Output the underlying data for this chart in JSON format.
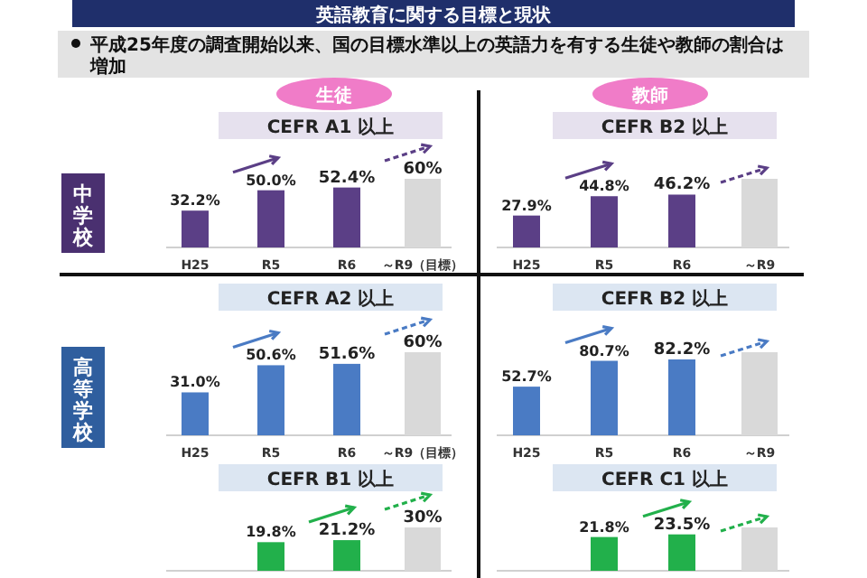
{
  "chart_data": [
    {
      "type": "bar",
      "title": "CEFR A1 以上",
      "categories": [
        "H25",
        "R5",
        "R6",
        "～R9（目標）"
      ],
      "values": [
        32.2,
        50.0,
        52.4,
        60
      ],
      "colors": [
        "#5b3f86",
        "#5b3f86",
        "#5b3f86",
        "#d9d9d9"
      ],
      "value_labels": [
        "32.2%",
        "50.0%",
        "52.4%",
        "60%"
      ],
      "annotations": [
        "英語教育に関する目標と現状",
        "平成25年度の調査開始以来、国の目標水準以上の英語力を有する生徒や教師の割合は増加",
        "生徒",
        "中学校"
      ]
    },
    {
      "type": "bar",
      "title": "CEFR B2 以上",
      "categories": [
        "H25",
        "R5",
        "R6",
        "～R9"
      ],
      "values": [
        27.9,
        44.8,
        46.2,
        60
      ],
      "colors": [
        "#5b3f86",
        "#5b3f86",
        "#5b3f86",
        "#d9d9d9"
      ],
      "value_labels": [
        "27.9%",
        "44.8%",
        "46.2%",
        null
      ],
      "annotations": [
        "教師"
      ]
    },
    {
      "type": "bar",
      "title": "CEFR A2 以上",
      "categories": [
        "H25",
        "R5",
        "R6",
        "～R9（目標）"
      ],
      "values": [
        31.0,
        50.6,
        51.6,
        60
      ],
      "colors": [
        "#4a7bc4",
        "#4a7bc4",
        "#4a7bc4",
        "#d9d9d9"
      ],
      "value_labels": [
        "31.0%",
        "50.6%",
        "51.6%",
        "60%"
      ],
      "annotations": [
        "高等学校"
      ]
    },
    {
      "type": "bar",
      "title": "CEFR B2 以上",
      "categories": [
        "H25",
        "R5",
        "R6",
        "～R9"
      ],
      "values": [
        52.7,
        80.7,
        82.2,
        90
      ],
      "colors": [
        "#4a7bc4",
        "#4a7bc4",
        "#4a7bc4",
        "#d9d9d9"
      ],
      "value_labels": [
        "52.7%",
        "80.7%",
        "82.2%",
        null
      ]
    },
    {
      "type": "bar",
      "title": "CEFR B1 以上",
      "categories": [
        null,
        null,
        null,
        null
      ],
      "values": [
        null,
        19.8,
        21.2,
        30
      ],
      "colors": [
        "#22b04b",
        "#22b04b",
        "#22b04b",
        "#d9d9d9"
      ],
      "value_labels": [
        null,
        "19.8%",
        "21.2%",
        "30%"
      ]
    },
    {
      "type": "bar",
      "title": "CEFR C1 以上",
      "categories": [
        null,
        null,
        null,
        null
      ],
      "values": [
        null,
        21.8,
        23.5,
        28
      ],
      "colors": [
        "#22b04b",
        "#22b04b",
        "#22b04b",
        "#d9d9d9"
      ],
      "value_labels": [
        null,
        "21.8%",
        "23.5%",
        null
      ]
    }
  ]
}
